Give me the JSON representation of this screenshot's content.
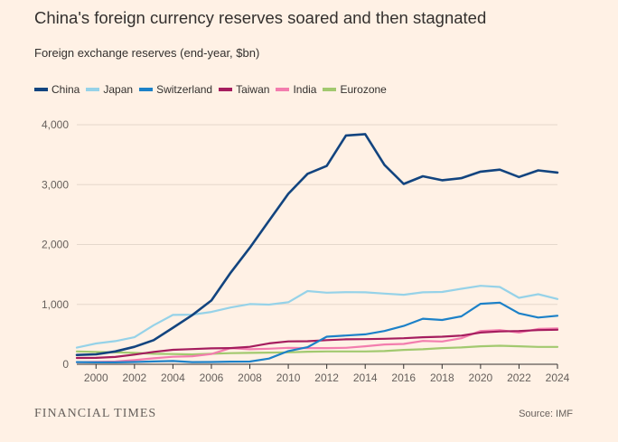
{
  "header": {
    "title": "China's foreign currency reserves soared and then stagnated",
    "subtitle": "Foreign exchange reserves (end-year, $bn)"
  },
  "footer": {
    "brand": "FINANCIAL TIMES",
    "source": "Source: IMF"
  },
  "chart_data": {
    "type": "line",
    "x": [
      1999,
      2000,
      2001,
      2002,
      2003,
      2004,
      2005,
      2006,
      2007,
      2008,
      2009,
      2010,
      2011,
      2012,
      2013,
      2014,
      2015,
      2016,
      2017,
      2018,
      2019,
      2020,
      2021,
      2022,
      2023,
      2024
    ],
    "xticks": [
      "2000",
      "2002",
      "2004",
      "2006",
      "2008",
      "2010",
      "2012",
      "2014",
      "2016",
      "2018",
      "2020",
      "2022",
      "2024"
    ],
    "xtick_values": [
      2000,
      2002,
      2004,
      2006,
      2008,
      2010,
      2012,
      2014,
      2016,
      2018,
      2020,
      2022,
      2024
    ],
    "xlim": [
      1999,
      2024
    ],
    "ylim": [
      0,
      4000
    ],
    "yticks": [
      "0",
      "1,000",
      "2,000",
      "3,000",
      "4,000"
    ],
    "ytick_values": [
      0,
      1000,
      2000,
      3000,
      4000
    ],
    "grid": true,
    "legend_position": "top-left",
    "series": [
      {
        "name": "Eurozone",
        "color": "#A2C96F",
        "values": [
          215,
          205,
          200,
          190,
          175,
          170,
          165,
          175,
          185,
          190,
          195,
          200,
          210,
          215,
          215,
          215,
          220,
          240,
          250,
          270,
          280,
          300,
          310,
          300,
          290,
          290
        ]
      },
      {
        "name": "India",
        "color": "#F37DAE",
        "values": [
          35,
          40,
          45,
          70,
          100,
          125,
          135,
          170,
          270,
          250,
          260,
          275,
          270,
          270,
          275,
          300,
          330,
          340,
          390,
          380,
          435,
          555,
          570,
          530,
          590,
          600
        ]
      },
      {
        "name": "Taiwan",
        "color": "#A51D5E",
        "values": [
          105,
          107,
          122,
          162,
          207,
          242,
          253,
          266,
          270,
          291,
          348,
          382,
          385,
          403,
          417,
          419,
          426,
          434,
          451,
          461,
          478,
          530,
          548,
          555,
          570,
          577
        ]
      },
      {
        "name": "Japan",
        "color": "#96D2E8",
        "values": [
          277,
          347,
          387,
          451,
          652,
          824,
          828,
          874,
          948,
          1006,
          996,
          1035,
          1223,
          1195,
          1204,
          1201,
          1180,
          1160,
          1201,
          1208,
          1260,
          1310,
          1290,
          1110,
          1170,
          1090
        ]
      },
      {
        "name": "Switzerland",
        "color": "#1C81C8",
        "values": [
          36,
          32,
          32,
          38,
          47,
          55,
          36,
          38,
          44,
          45,
          95,
          220,
          285,
          460,
          480,
          500,
          555,
          640,
          760,
          740,
          800,
          1010,
          1030,
          850,
          780,
          810
        ]
      },
      {
        "name": "China",
        "color": "#12447F",
        "values": [
          155,
          166,
          215,
          292,
          403,
          610,
          819,
          1066,
          1528,
          1946,
          2399,
          2847,
          3181,
          3312,
          3821,
          3843,
          3330,
          3011,
          3140,
          3073,
          3108,
          3217,
          3250,
          3128,
          3238,
          3202
        ]
      }
    ]
  }
}
